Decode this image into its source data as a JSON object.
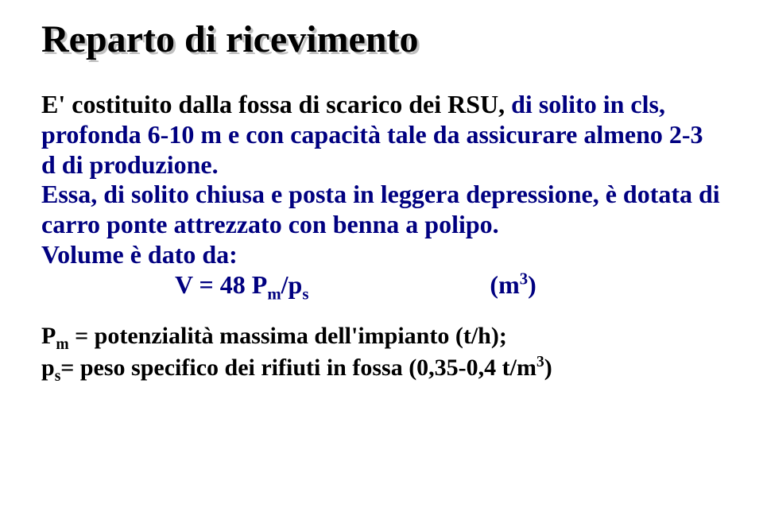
{
  "colors": {
    "background": "#ffffff",
    "title_color": "#000000",
    "title_shadow": "#c0c0c0",
    "body_primary": "#000080",
    "body_secondary": "#000000"
  },
  "typography": {
    "font_family": "Times New Roman",
    "title_fontsize_pt": 36,
    "body_fontsize_pt": 24,
    "defs_fontsize_pt": 22,
    "all_bold": true
  },
  "title": "Reparto di ricevimento",
  "paragraph1": {
    "lead": "E' costituito dalla fossa di scarico dei RSU, ",
    "tail": "di solito in cls, profonda 6-10 m e con capacità tale da assicurare almeno 2-3 d di produzione."
  },
  "paragraph2": "Essa, di solito chiusa e posta in leggera depressione, è dotata di carro ponte attrezzato con benna a polipo.",
  "formula": {
    "intro": "Volume è dato da:",
    "lhs": "V = 48 P",
    "lhs_sub": "m",
    "over": "/p",
    "over_sub": "s",
    "unit_open": "(m",
    "unit_sup": "3",
    "unit_close": ")"
  },
  "defs": {
    "line1_sym": "P",
    "line1_sub": "m",
    "line1_eq": " = potenzialit",
    "line1_agrave": "à",
    "line1_rest": " massima dell'impianto (t/h);",
    "line2_sym": "p",
    "line2_sub": "s",
    "line2_eq": "= peso specifico dei rifiuti in fossa (0,35-0,4 t/m",
    "line2_sup": "3",
    "line2_close": ")"
  }
}
